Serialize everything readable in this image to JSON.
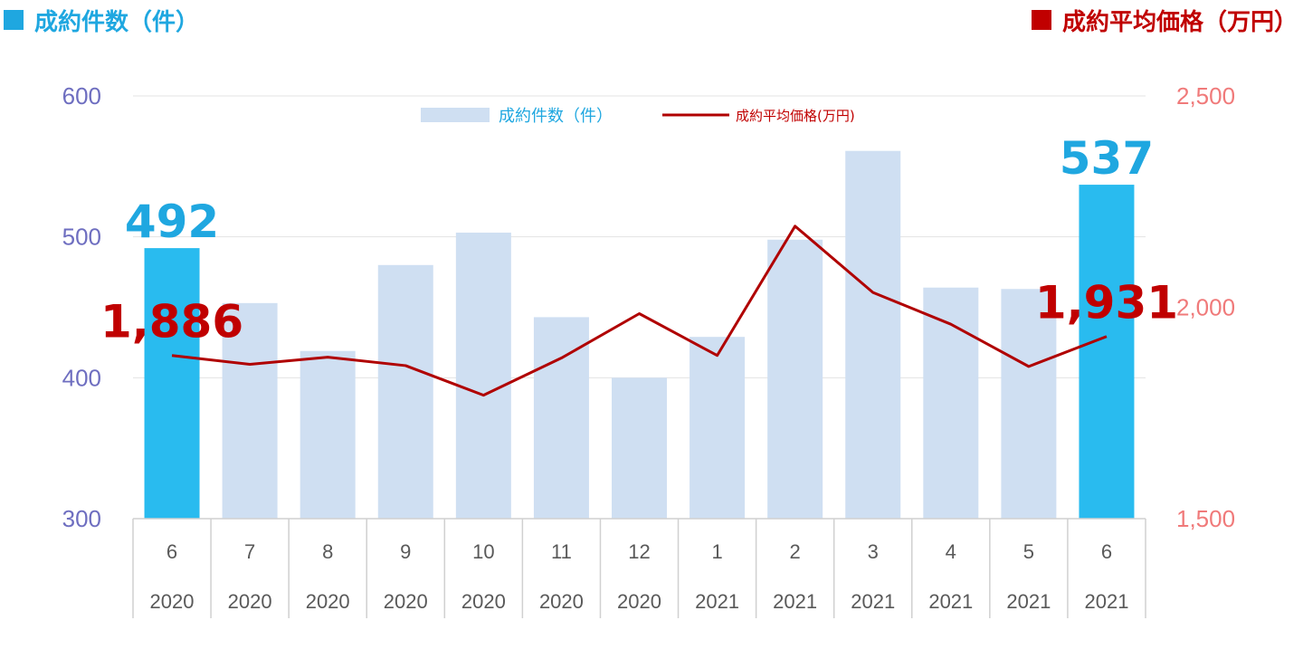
{
  "header": {
    "left_title": "成約件数（件）",
    "right_title": "成約平均価格（万円）"
  },
  "colors": {
    "bar": "#cfdff2",
    "bar_highlight": "#29bbef",
    "line": "#b00000",
    "left_axis": "#6e6ec0",
    "right_axis": "#f07a7a",
    "highlight_text_bar": "#1fa7e0",
    "highlight_text_line": "#c00000"
  },
  "chart_data": {
    "type": "bar",
    "categories": [
      {
        "month": "6",
        "year": "2020"
      },
      {
        "month": "7",
        "year": "2020"
      },
      {
        "month": "8",
        "year": "2020"
      },
      {
        "month": "9",
        "year": "2020"
      },
      {
        "month": "10",
        "year": "2020"
      },
      {
        "month": "11",
        "year": "2020"
      },
      {
        "month": "12",
        "year": "2020"
      },
      {
        "month": "1",
        "year": "2021"
      },
      {
        "month": "2",
        "year": "2021"
      },
      {
        "month": "3",
        "year": "2021"
      },
      {
        "month": "4",
        "year": "2021"
      },
      {
        "month": "5",
        "year": "2021"
      },
      {
        "month": "6",
        "year": "2021"
      }
    ],
    "series": [
      {
        "name": "成約件数（件）",
        "type": "bar",
        "axis": "left",
        "values": [
          492,
          453,
          419,
          480,
          503,
          443,
          400,
          429,
          498,
          561,
          464,
          463,
          537
        ],
        "highlight_indices": [
          0,
          12
        ]
      },
      {
        "name": "成約平均価格(万円)",
        "type": "line",
        "axis": "right",
        "values": [
          1886,
          1865,
          1882,
          1862,
          1792,
          1880,
          1985,
          1886,
          2192,
          2035,
          1960,
          1860,
          1931
        ]
      }
    ],
    "y_left": {
      "ticks": [
        "600",
        "500",
        "400",
        "300"
      ],
      "tick_values": [
        600,
        500,
        400,
        300
      ],
      "range": [
        300,
        600
      ]
    },
    "y_right": {
      "ticks": [
        "2,500",
        "2,000",
        "1,500"
      ],
      "tick_values": [
        2500,
        2000,
        1500
      ],
      "range": [
        1500,
        2500
      ]
    },
    "annotations": [
      {
        "series": 0,
        "index": 0,
        "text": "492"
      },
      {
        "series": 0,
        "index": 12,
        "text": "537"
      },
      {
        "series": 1,
        "index": 0,
        "text": "1,886"
      },
      {
        "series": 1,
        "index": 12,
        "text": "1,931"
      }
    ],
    "legend_position": "top-center",
    "grid": true
  }
}
